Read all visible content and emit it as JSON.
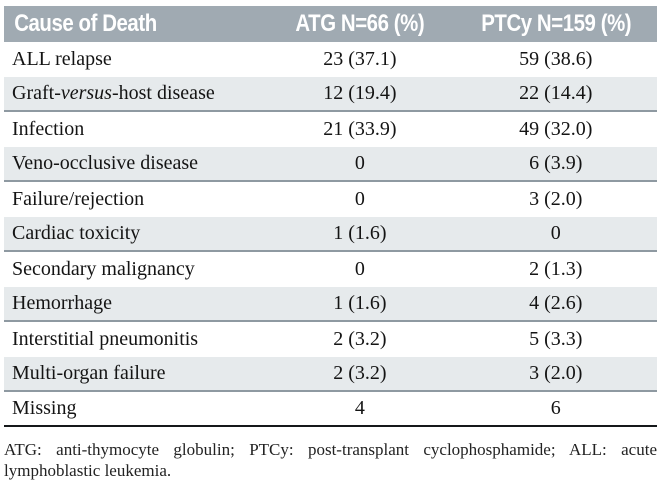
{
  "table": {
    "header": {
      "cause": "Cause of Death",
      "atg": "ATG N=66 (%)",
      "ptcy": "PTCy N=159 (%)"
    },
    "rows": [
      {
        "cause": "ALL relapse",
        "atg": "23 (37.1)",
        "ptcy": "59 (38.6)"
      },
      {
        "cause_parts": {
          "pre": "Graft-",
          "italic": "versus",
          "post": "-host disease"
        },
        "atg": "12 (19.4)",
        "ptcy": "22 (14.4)"
      },
      {
        "cause": "Infection",
        "atg": "21 (33.9)",
        "ptcy": "49 (32.0)"
      },
      {
        "cause": "Veno-occlusive disease",
        "atg": "0",
        "ptcy": "6 (3.9)"
      },
      {
        "cause": "Failure/rejection",
        "atg": "0",
        "ptcy": "3 (2.0)"
      },
      {
        "cause": "Cardiac toxicity",
        "atg": "1 (1.6)",
        "ptcy": "0"
      },
      {
        "cause": "Secondary malignancy",
        "atg": "0",
        "ptcy": "2 (1.3)"
      },
      {
        "cause": "Hemorrhage",
        "atg": "1 (1.6)",
        "ptcy": "4 (2.6)"
      },
      {
        "cause": "Interstitial pneumonitis",
        "atg": "2 (3.2)",
        "ptcy": "5 (3.3)"
      },
      {
        "cause": "Multi-organ failure",
        "atg": "2 (3.2)",
        "ptcy": "3 (2.0)"
      },
      {
        "cause": "Missing",
        "atg": "4",
        "ptcy": "6"
      }
    ]
  },
  "footnote": {
    "line1": "ATG: anti-thymocyte globulin; PTCy: post-transplant cyclophosphamide; ALL: acute",
    "line2": "lymphoblastic leukemia.",
    "full_text": "ATG: anti-thymocyte globulin; PTCy: post-transplant cyclophosphamide; ALL: acute lymphoblastic leukemia."
  },
  "colors": {
    "header_bg": "#a0aab2",
    "row_alt_bg": "#e6eaec",
    "separator": "#8e99a1",
    "bottom_rule": "#15181a",
    "header_text": "#ffffff"
  }
}
